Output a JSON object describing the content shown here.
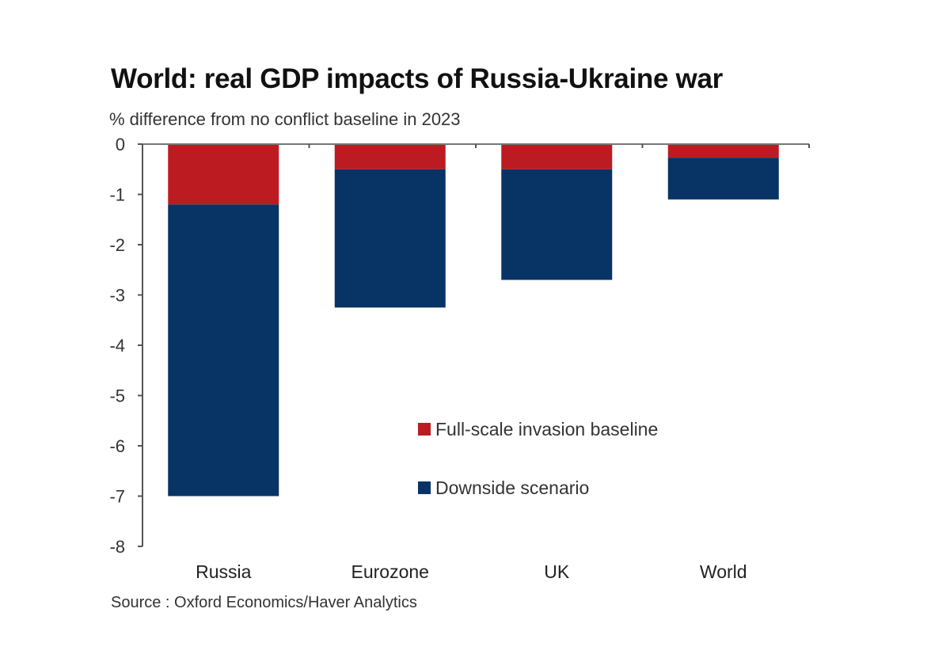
{
  "chart_data": {
    "type": "bar",
    "stacked": true,
    "title": "World: real GDP impacts of Russia-Ukraine war",
    "subtitle": "% difference from no conflict baseline in 2023",
    "source": "Source : Oxford Economics/Haver Analytics",
    "xlabel": "",
    "ylabel": "",
    "categories": [
      "Russia",
      "Eurozone",
      "UK",
      "World"
    ],
    "series": [
      {
        "name": "Full-scale invasion baseline",
        "color": "#BC1C21",
        "values": [
          -1.2,
          -0.5,
          -0.5,
          -0.27
        ]
      },
      {
        "name": "Downside scenario",
        "color": "#083365",
        "values": [
          -5.8,
          -2.75,
          -2.2,
          -0.83
        ]
      }
    ],
    "totals": [
      -7.0,
      -3.25,
      -2.7,
      -1.1
    ],
    "yticks": [
      0,
      -1,
      -2,
      -3,
      -4,
      -5,
      -6,
      -7,
      -8
    ],
    "ylim": [
      -8,
      0
    ],
    "grid": false,
    "legend_position": "center-right inside plot"
  }
}
